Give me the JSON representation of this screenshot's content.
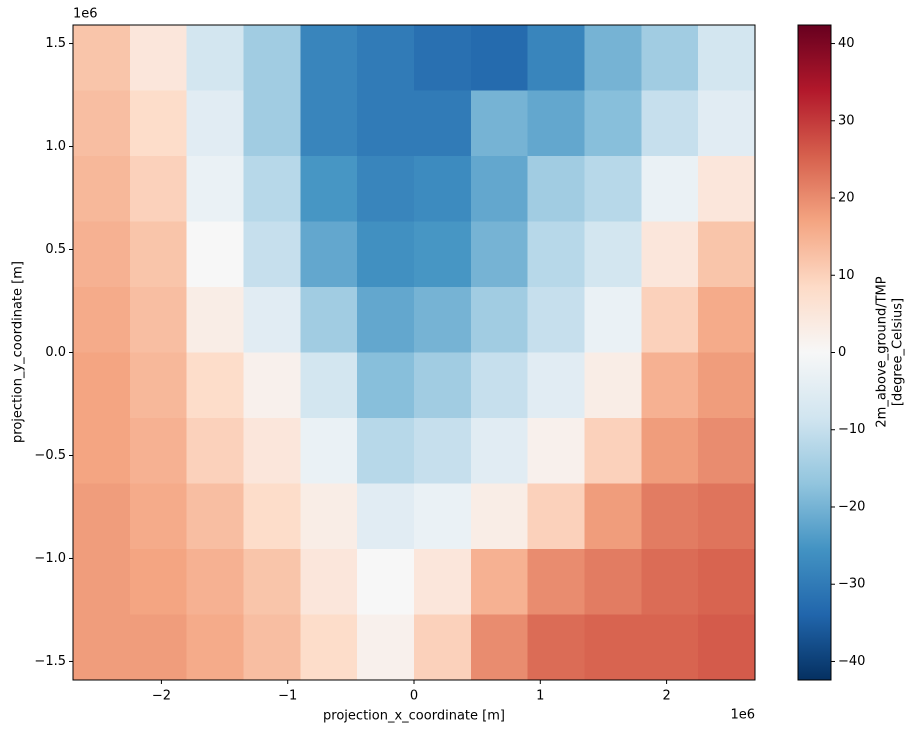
{
  "chart_data": {
    "type": "heatmap",
    "xlabel": "projection_x_coordinate [m]",
    "ylabel": "projection_y_coordinate [m]",
    "x_offset_label": "1e6",
    "y_offset_label": "1e6",
    "xlim": [
      -2.7,
      2.7
    ],
    "ylim": [
      -1.59,
      1.59
    ],
    "xticks": [
      {
        "value": -2,
        "label": "−2"
      },
      {
        "value": -1,
        "label": "−1"
      },
      0,
      1,
      2
    ],
    "yticks": [
      {
        "value": -1.5,
        "label": "−1.5"
      },
      {
        "value": -1,
        "label": "−1.0"
      },
      {
        "value": -0.5,
        "label": "−0.5"
      },
      {
        "value": 0,
        "label": "0.0"
      },
      0.5,
      {
        "value": 1,
        "label": "1.0"
      },
      1.5
    ],
    "cmap": "RdBu_r",
    "clim": [
      -42.4,
      42.4
    ],
    "cticks": [
      {
        "value": -40,
        "label": "−40"
      },
      {
        "value": -30,
        "label": "−30"
      },
      {
        "value": -20,
        "label": "−20"
      },
      {
        "value": -10,
        "label": "−10"
      },
      0,
      10,
      20,
      30,
      40
    ],
    "colorbar_label": [
      "2m_above_ground/TMP",
      "[degree_Celsius]"
    ],
    "z": [
      [
        12,
        5,
        -8,
        -15,
        -28,
        -30,
        -32,
        -33,
        -28,
        -20,
        -15,
        -8
      ],
      [
        13,
        8,
        -5,
        -15,
        -28,
        -30,
        -30,
        -20,
        -22,
        -18,
        -10,
        -5
      ],
      [
        14,
        10,
        -3,
        -12,
        -25,
        -28,
        -27,
        -22,
        -15,
        -12,
        -3,
        5
      ],
      [
        15,
        12,
        0,
        -10,
        -22,
        -26,
        -25,
        -20,
        -12,
        -8,
        5,
        12
      ],
      [
        16,
        13,
        3,
        -5,
        -15,
        -22,
        -20,
        -15,
        -10,
        -3,
        10,
        16
      ],
      [
        17,
        14,
        8,
        2,
        -8,
        -18,
        -15,
        -10,
        -5,
        3,
        15,
        18
      ],
      [
        17,
        15,
        10,
        5,
        -3,
        -12,
        -10,
        -5,
        2,
        10,
        18,
        20
      ],
      [
        18,
        16,
        13,
        8,
        3,
        -5,
        -3,
        3,
        10,
        18,
        22,
        23
      ],
      [
        18,
        17,
        15,
        12,
        5,
        0,
        5,
        15,
        20,
        22,
        24,
        25
      ],
      [
        18,
        18,
        16,
        13,
        8,
        2,
        10,
        20,
        24,
        25,
        25,
        26
      ]
    ]
  }
}
